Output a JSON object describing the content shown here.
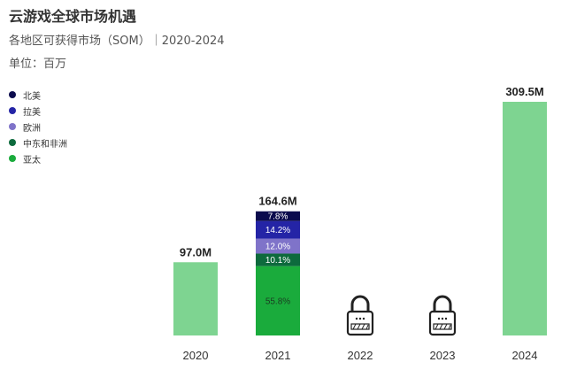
{
  "header": {
    "title": "云游戏全球市场机遇",
    "subtitle": "各地区可获得市场（SOM）｜2020-2024",
    "unit": "单位：百万"
  },
  "legend": [
    {
      "label": "北美",
      "color": "#0b0b4d"
    },
    {
      "label": "拉美",
      "color": "#2424a6"
    },
    {
      "label": "欧洲",
      "color": "#7f73c9"
    },
    {
      "label": "中东和非洲",
      "color": "#0d6a3d"
    },
    {
      "label": "亚太",
      "color": "#1aab3c"
    }
  ],
  "chart_data": {
    "type": "bar",
    "title": "云游戏全球市场机遇",
    "subtitle": "各地区可获得市场（SOM）｜2020-2024",
    "ylabel": "单位：百万",
    "categories": [
      "2020",
      "2021",
      "2022",
      "2023",
      "2024"
    ],
    "totals": [
      97.0,
      164.6,
      null,
      null,
      309.5
    ],
    "total_labels": [
      "97.0M",
      "164.6M",
      "",
      "",
      "309.5M"
    ],
    "locked": [
      false,
      false,
      true,
      true,
      false
    ],
    "total_bar_color": "#7ed491",
    "breakdown_2021": [
      {
        "name": "亚太",
        "share": 55.8,
        "label": "55.8%",
        "color": "#1aab3c",
        "text_color": "#1a3d22"
      },
      {
        "name": "中东和非洲",
        "share": 10.1,
        "label": "10.1%",
        "color": "#0d6a3d",
        "text_color": "#ffffff"
      },
      {
        "name": "欧洲",
        "share": 12.0,
        "label": "12.0%",
        "color": "#7f73c9",
        "text_color": "#ffffff"
      },
      {
        "name": "拉美",
        "share": 14.2,
        "label": "14.2%",
        "color": "#2424a6",
        "text_color": "#ffffff"
      },
      {
        "name": "北美",
        "share": 7.8,
        "label": "7.8%",
        "color": "#0b0b4d",
        "text_color": "#ffffff"
      }
    ]
  }
}
